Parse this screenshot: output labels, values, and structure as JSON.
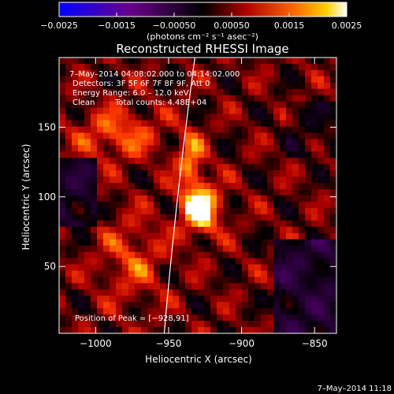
{
  "chart_data": {
    "type": "heatmap",
    "title": "Reconstructed RHESSI Image",
    "xlabel": "Heliocentric X (arcsec)",
    "ylabel": "Heliocentric Y (arcsec)",
    "xlim": [
      -1025,
      -835
    ],
    "ylim": [
      2,
      200
    ],
    "x_ticks": [
      -1000,
      -950,
      -900,
      -850
    ],
    "y_ticks": [
      50,
      100,
      150
    ],
    "x_tick_labels": [
      "−1000",
      "−950",
      "−900",
      "−850"
    ],
    "y_tick_labels": [
      "50",
      "100",
      "150"
    ],
    "colorbar": {
      "range": [
        -0.0025,
        0.0025
      ],
      "ticks": [
        -0.0025,
        -0.0015,
        -0.0005,
        0.0005,
        0.0015,
        0.0025
      ],
      "tick_labels": [
        "−0.0025",
        "−0.0015",
        "−0.00050",
        "0.00050",
        "0.0015",
        "0.0025"
      ],
      "unit_label": "(photons cm⁻² s⁻¹ asec⁻²)"
    },
    "annotations": {
      "time_range": "7–May–2014 04:08:02.000 to 04:14:02.000",
      "detectors": "Detectors: 3F 5F 6F 7F 8F 9F, Att 0",
      "energy": "Energy Range: 6.0 – 12.0 keV",
      "clean_label": "Clean",
      "total_counts": "Total counts: 4.48E+04",
      "peak": "Position of Peak = [−928,91]"
    },
    "peak": {
      "x": -928,
      "y": 91
    },
    "limb_points": [
      [
        -953,
        2
      ],
      [
        -945,
        100
      ],
      [
        -932,
        200
      ]
    ],
    "footer_timestamp": "7–May–2014 11:18"
  }
}
